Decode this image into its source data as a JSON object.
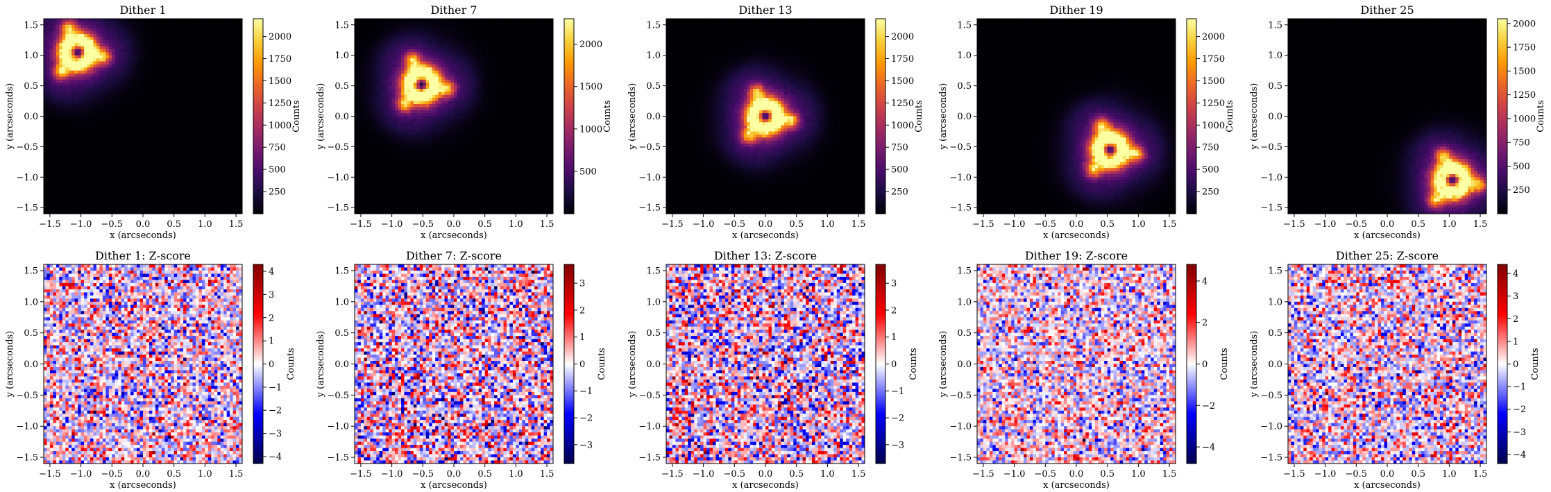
{
  "colors": {
    "inferno": [
      "#000004",
      "#1b0c41",
      "#4a0c6b",
      "#781c6d",
      "#a52c60",
      "#cf4446",
      "#ed6925",
      "#fb9b06",
      "#f7d13d",
      "#fcffa4"
    ],
    "seismic": [
      "#00004c",
      "#0000ff",
      "#ffffff",
      "#ff0000",
      "#800000"
    ]
  },
  "chart_data": [
    {
      "type": "heatmap",
      "title": "Dither 1",
      "xlabel": "x (arcseconds)",
      "ylabel": "y (arcseconds)",
      "xlim": [
        -1.6,
        1.6
      ],
      "ylim": [
        -1.6,
        1.6
      ],
      "xticks": [
        "−1.5",
        "−1.0",
        "−0.5",
        "0.0",
        "0.5",
        "1.0",
        "1.5"
      ],
      "yticks": [
        "1.5",
        "1.0",
        "0.5",
        "0.0",
        "−0.5",
        "−1.0",
        "−1.5"
      ],
      "source_center": [
        -1.05,
        1.05
      ],
      "peak_counts": 2200,
      "colorbar": {
        "label": "Counts",
        "range": [
          0,
          2200
        ],
        "ticks": [
          {
            "v": 250,
            "t": "250"
          },
          {
            "v": 500,
            "t": "500"
          },
          {
            "v": 750,
            "t": "750"
          },
          {
            "v": 1000,
            "t": "1000"
          },
          {
            "v": 1250,
            "t": "1250"
          },
          {
            "v": 1500,
            "t": "1500"
          },
          {
            "v": 1750,
            "t": "1750"
          },
          {
            "v": 2000,
            "t": "2000"
          }
        ]
      }
    },
    {
      "type": "heatmap",
      "title": "Dither 7",
      "xlabel": "x (arcseconds)",
      "ylabel": "y (arcseconds)",
      "xlim": [
        -1.6,
        1.6
      ],
      "ylim": [
        -1.6,
        1.6
      ],
      "xticks": [
        "−1.5",
        "−1.0",
        "−0.5",
        "0.0",
        "0.5",
        "1.0",
        "1.5"
      ],
      "yticks": [
        "1.5",
        "1.0",
        "0.5",
        "0.0",
        "−0.5",
        "−1.0",
        "−1.5"
      ],
      "source_center": [
        -0.52,
        0.52
      ],
      "peak_counts": 2300,
      "colorbar": {
        "label": "Counts",
        "range": [
          0,
          2300
        ],
        "ticks": [
          {
            "v": 500,
            "t": "500"
          },
          {
            "v": 1000,
            "t": "1000"
          },
          {
            "v": 1500,
            "t": "1500"
          },
          {
            "v": 2000,
            "t": "2000"
          }
        ]
      }
    },
    {
      "type": "heatmap",
      "title": "Dither 13",
      "xlabel": "x (arcseconds)",
      "ylabel": "y (arcseconds)",
      "xlim": [
        -1.6,
        1.6
      ],
      "ylim": [
        -1.6,
        1.6
      ],
      "xticks": [
        "−1.5",
        "−1.0",
        "−0.5",
        "0.0",
        "0.5",
        "1.0",
        "1.5"
      ],
      "yticks": [
        "1.5",
        "1.0",
        "0.5",
        "0.0",
        "−0.5",
        "−1.0",
        "−1.5"
      ],
      "source_center": [
        0.0,
        0.0
      ],
      "peak_counts": 2200,
      "colorbar": {
        "label": "Counts",
        "range": [
          0,
          2200
        ],
        "ticks": [
          {
            "v": 250,
            "t": "250"
          },
          {
            "v": 500,
            "t": "500"
          },
          {
            "v": 750,
            "t": "750"
          },
          {
            "v": 1000,
            "t": "1000"
          },
          {
            "v": 1250,
            "t": "1250"
          },
          {
            "v": 1500,
            "t": "1500"
          },
          {
            "v": 1750,
            "t": "1750"
          },
          {
            "v": 2000,
            "t": "2000"
          }
        ]
      }
    },
    {
      "type": "heatmap",
      "title": "Dither 19",
      "xlabel": "x (arcseconds)",
      "ylabel": "y (arcseconds)",
      "xlim": [
        -1.6,
        1.6
      ],
      "ylim": [
        -1.6,
        1.6
      ],
      "xticks": [
        "−1.5",
        "−1.0",
        "−0.5",
        "0.0",
        "0.5",
        "1.0",
        "1.5"
      ],
      "yticks": [
        "1.5",
        "1.0",
        "0.5",
        "0.0",
        "−0.5",
        "−1.0",
        "−1.5"
      ],
      "source_center": [
        0.55,
        -0.55
      ],
      "peak_counts": 2200,
      "colorbar": {
        "label": "Counts",
        "range": [
          0,
          2200
        ],
        "ticks": [
          {
            "v": 250,
            "t": "250"
          },
          {
            "v": 500,
            "t": "500"
          },
          {
            "v": 750,
            "t": "750"
          },
          {
            "v": 1000,
            "t": "1000"
          },
          {
            "v": 1250,
            "t": "1250"
          },
          {
            "v": 1500,
            "t": "1500"
          },
          {
            "v": 1750,
            "t": "1750"
          },
          {
            "v": 2000,
            "t": "2000"
          }
        ]
      }
    },
    {
      "type": "heatmap",
      "title": "Dither 25",
      "xlabel": "x (arcseconds)",
      "ylabel": "y (arcseconds)",
      "xlim": [
        -1.6,
        1.6
      ],
      "ylim": [
        -1.6,
        1.6
      ],
      "xticks": [
        "−1.5",
        "−1.0",
        "−0.5",
        "0.0",
        "0.5",
        "1.0",
        "1.5"
      ],
      "yticks": [
        "1.5",
        "1.0",
        "0.5",
        "0.0",
        "−0.5",
        "−1.0",
        "−1.5"
      ],
      "source_center": [
        1.05,
        -1.05
      ],
      "peak_counts": 2050,
      "colorbar": {
        "label": "Counts",
        "range": [
          0,
          2050
        ],
        "ticks": [
          {
            "v": 250,
            "t": "250"
          },
          {
            "v": 500,
            "t": "500"
          },
          {
            "v": 750,
            "t": "750"
          },
          {
            "v": 1000,
            "t": "1000"
          },
          {
            "v": 1250,
            "t": "1250"
          },
          {
            "v": 1500,
            "t": "1500"
          },
          {
            "v": 1750,
            "t": "1750"
          },
          {
            "v": 2000,
            "t": "2000"
          }
        ]
      }
    },
    {
      "type": "heatmap",
      "title": "Dither 1: Z-score",
      "xlabel": "x (arcseconds)",
      "ylabel": "y (arcseconds)",
      "xlim": [
        -1.6,
        1.6
      ],
      "ylim": [
        -1.6,
        1.6
      ],
      "xticks": [
        "−1.5",
        "−1.0",
        "−0.5",
        "0.0",
        "0.5",
        "1.0",
        "1.5"
      ],
      "yticks": [
        "1.5",
        "1.0",
        "0.5",
        "0.0",
        "−0.5",
        "−1.0",
        "−1.5"
      ],
      "z_range": [
        -4.3,
        4.3
      ],
      "colorbar": {
        "label": "Counts",
        "range": [
          -4.3,
          4.3
        ],
        "ticks": [
          {
            "v": 4,
            "t": "4"
          },
          {
            "v": 3,
            "t": "3"
          },
          {
            "v": 2,
            "t": "2"
          },
          {
            "v": 1,
            "t": "1"
          },
          {
            "v": 0,
            "t": "0"
          },
          {
            "v": -1,
            "t": "−1"
          },
          {
            "v": -2,
            "t": "−2"
          },
          {
            "v": -3,
            "t": "−3"
          },
          {
            "v": -4,
            "t": "−4"
          }
        ]
      }
    },
    {
      "type": "heatmap",
      "title": "Dither 7: Z-score",
      "xlabel": "x (arcseconds)",
      "ylabel": "y (arcseconds)",
      "xlim": [
        -1.6,
        1.6
      ],
      "ylim": [
        -1.6,
        1.6
      ],
      "xticks": [
        "−1.5",
        "−1.0",
        "−0.5",
        "0.0",
        "0.5",
        "1.0",
        "1.5"
      ],
      "yticks": [
        "1.5",
        "1.0",
        "0.5",
        "0.0",
        "−0.5",
        "−1.0",
        "−1.5"
      ],
      "z_range": [
        -3.7,
        3.7
      ],
      "colorbar": {
        "label": "Counts",
        "range": [
          -3.7,
          3.7
        ],
        "ticks": [
          {
            "v": 3,
            "t": "3"
          },
          {
            "v": 2,
            "t": "2"
          },
          {
            "v": 1,
            "t": "1"
          },
          {
            "v": 0,
            "t": "0"
          },
          {
            "v": -1,
            "t": "−1"
          },
          {
            "v": -2,
            "t": "−2"
          },
          {
            "v": -3,
            "t": "−3"
          }
        ]
      }
    },
    {
      "type": "heatmap",
      "title": "Dither 13: Z-score",
      "xlabel": "x (arcseconds)",
      "ylabel": "y (arcseconds)",
      "xlim": [
        -1.6,
        1.6
      ],
      "ylim": [
        -1.6,
        1.6
      ],
      "xticks": [
        "−1.5",
        "−1.0",
        "−0.5",
        "0.0",
        "0.5",
        "1.0",
        "1.5"
      ],
      "yticks": [
        "1.5",
        "1.0",
        "0.5",
        "0.0",
        "−0.5",
        "−1.0",
        "−1.5"
      ],
      "z_range": [
        -3.7,
        3.7
      ],
      "colorbar": {
        "label": "Counts",
        "range": [
          -3.7,
          3.7
        ],
        "ticks": [
          {
            "v": 3,
            "t": "3"
          },
          {
            "v": 2,
            "t": "2"
          },
          {
            "v": 1,
            "t": "1"
          },
          {
            "v": 0,
            "t": "0"
          },
          {
            "v": -1,
            "t": "−1"
          },
          {
            "v": -2,
            "t": "−2"
          },
          {
            "v": -3,
            "t": "−3"
          }
        ]
      }
    },
    {
      "type": "heatmap",
      "title": "Dither 19: Z-score",
      "xlabel": "x (arcseconds)",
      "ylabel": "y (arcseconds)",
      "xlim": [
        -1.6,
        1.6
      ],
      "ylim": [
        -1.6,
        1.6
      ],
      "xticks": [
        "−1.5",
        "−1.0",
        "−0.5",
        "0.0",
        "0.5",
        "1.0",
        "1.5"
      ],
      "yticks": [
        "1.5",
        "1.0",
        "0.5",
        "0.0",
        "−0.5",
        "−1.0",
        "−1.5"
      ],
      "z_range": [
        -4.8,
        4.8
      ],
      "colorbar": {
        "label": "Counts",
        "range": [
          -4.8,
          4.8
        ],
        "ticks": [
          {
            "v": 4,
            "t": "4"
          },
          {
            "v": 2,
            "t": "2"
          },
          {
            "v": 0,
            "t": "0"
          },
          {
            "v": -2,
            "t": "−2"
          },
          {
            "v": -4,
            "t": "−4"
          }
        ]
      }
    },
    {
      "type": "heatmap",
      "title": "Dither 25: Z-score",
      "xlabel": "x (arcseconds)",
      "ylabel": "y (arcseconds)",
      "xlim": [
        -1.6,
        1.6
      ],
      "ylim": [
        -1.6,
        1.6
      ],
      "xticks": [
        "−1.5",
        "−1.0",
        "−0.5",
        "0.0",
        "0.5",
        "1.0",
        "1.5"
      ],
      "yticks": [
        "1.5",
        "1.0",
        "0.5",
        "0.0",
        "−0.5",
        "−1.0",
        "−1.5"
      ],
      "z_range": [
        -4.4,
        4.4
      ],
      "colorbar": {
        "label": "Counts",
        "range": [
          -4.4,
          4.4
        ],
        "ticks": [
          {
            "v": 4,
            "t": "4"
          },
          {
            "v": 3,
            "t": "3"
          },
          {
            "v": 2,
            "t": "2"
          },
          {
            "v": 1,
            "t": "1"
          },
          {
            "v": 0,
            "t": "0"
          },
          {
            "v": -1,
            "t": "−1"
          },
          {
            "v": -2,
            "t": "−2"
          },
          {
            "v": -3,
            "t": "−3"
          },
          {
            "v": -4,
            "t": "−4"
          }
        ]
      }
    }
  ]
}
